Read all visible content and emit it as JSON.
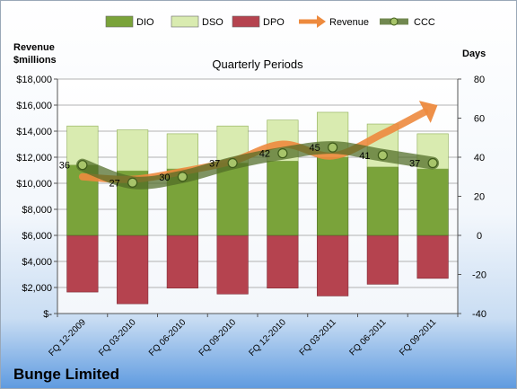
{
  "chart_data": {
    "type": "bar",
    "title": "Quarterly Periods",
    "company": "Bunge Limited",
    "left_axis_title": [
      "Revenue",
      "$millions"
    ],
    "right_axis_title": "Days",
    "categories": [
      "FQ 12-2009",
      "FQ 03-2010",
      "FQ 06-2010",
      "FQ 09-2010",
      "FQ 12-2010",
      "FQ 03-2011",
      "FQ 06-2011",
      "FQ 09-2011"
    ],
    "left_ticks": [
      "$-",
      "$2,000",
      "$4,000",
      "$6,000",
      "$8,000",
      "$10,000",
      "$12,000",
      "$14,000",
      "$16,000",
      "$18,000"
    ],
    "right_ticks": [
      "-40",
      "-20",
      "0",
      "20",
      "40",
      "60",
      "80"
    ],
    "right_ylim": [
      -40,
      80
    ],
    "legend_position": "top",
    "series": [
      {
        "name": "DIO",
        "type": "stacked-bar",
        "axis": "right",
        "color": "#7aa33a",
        "values": [
          36,
          33,
          34,
          37,
          38,
          40,
          35,
          34
        ]
      },
      {
        "name": "DSO",
        "type": "stacked-bar",
        "axis": "right",
        "color": "#d9ebb0",
        "values": [
          20,
          21,
          18,
          19,
          21,
          23,
          22,
          18
        ]
      },
      {
        "name": "DPO",
        "type": "bar-negative",
        "axis": "right",
        "color": "#b5434f",
        "values": [
          -29,
          -35,
          -27,
          -30,
          -27,
          -31,
          -25,
          -22
        ]
      },
      {
        "name": "Revenue",
        "type": "arrow-line",
        "axis": "left",
        "color": "#ed8a3e",
        "values": [
          10500,
          10300,
          10900,
          11700,
          13000,
          12100,
          13800,
          15800
        ]
      },
      {
        "name": "CCC",
        "type": "line",
        "axis": "right",
        "color": "#4f6b25",
        "values": [
          36,
          27,
          30,
          37,
          42,
          45,
          41,
          37
        ],
        "labels": [
          "36",
          "27",
          "30",
          "37",
          "42",
          "45",
          "41",
          "37"
        ]
      }
    ]
  }
}
